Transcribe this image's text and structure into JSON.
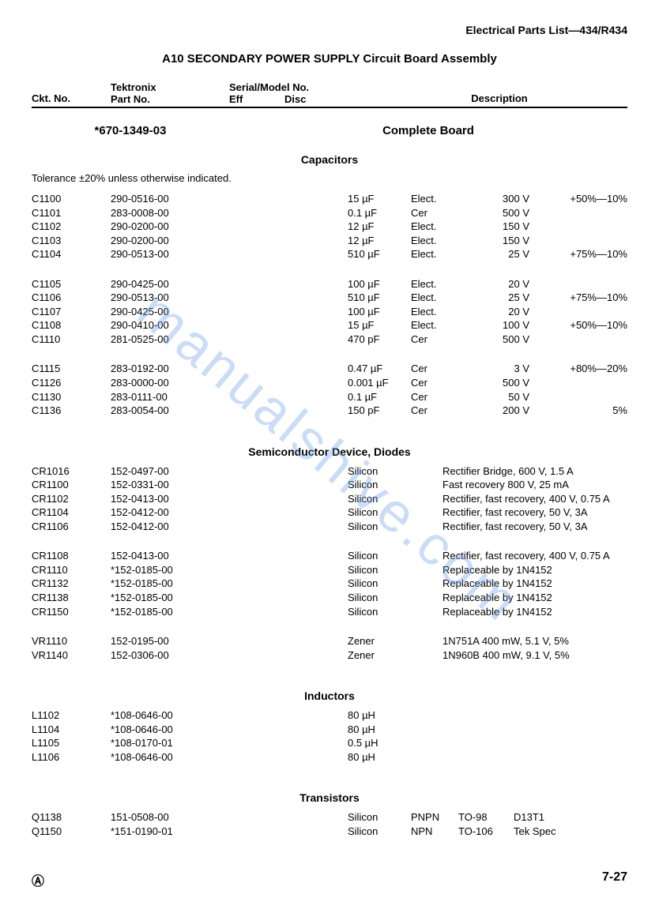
{
  "header": {
    "top_right": "Electrical Parts List—434/R434",
    "title": "A10   SECONDARY POWER SUPPLY Circuit Board Assembly",
    "col_ckt": "Ckt. No.",
    "col_part_top": "Tektronix",
    "col_part_bot": "Part No.",
    "col_serial_top": "Serial/Model No.",
    "col_eff": "Eff",
    "col_disc": "Disc",
    "col_desc": "Description"
  },
  "board": {
    "part": "*670-1349-03",
    "desc": "Complete Board"
  },
  "sections": {
    "cap": {
      "title": "Capacitors",
      "tol": "Tolerance ±20% unless otherwise indicated."
    },
    "sem": {
      "title": "Semiconductor Device, Diodes"
    },
    "ind": {
      "title": "Inductors"
    },
    "tra": {
      "title": "Transistors"
    }
  },
  "caps": [
    [
      {
        "ckt": "C1100",
        "part": "290-0516-00",
        "v1": "15 µF",
        "v2": "Elect.",
        "v3": "300 V",
        "v4": "+50%—10%"
      },
      {
        "ckt": "C1101",
        "part": "283-0008-00",
        "v1": "0.1 µF",
        "v2": "Cer",
        "v3": "500 V",
        "v4": ""
      },
      {
        "ckt": "C1102",
        "part": "290-0200-00",
        "v1": "12 µF",
        "v2": "Elect.",
        "v3": "150 V",
        "v4": ""
      },
      {
        "ckt": "C1103",
        "part": "290-0200-00",
        "v1": "12 µF",
        "v2": "Elect.",
        "v3": "150 V",
        "v4": ""
      },
      {
        "ckt": "C1104",
        "part": "290-0513-00",
        "v1": "510 µF",
        "v2": "Elect.",
        "v3": "25 V",
        "v4": "+75%—10%"
      }
    ],
    [
      {
        "ckt": "C1105",
        "part": "290-0425-00",
        "v1": "100 µF",
        "v2": "Elect.",
        "v3": "20 V",
        "v4": ""
      },
      {
        "ckt": "C1106",
        "part": "290-0513-00",
        "v1": "510 µF",
        "v2": "Elect.",
        "v3": "25 V",
        "v4": "+75%—10%"
      },
      {
        "ckt": "C1107",
        "part": "290-0425-00",
        "v1": "100 µF",
        "v2": "Elect.",
        "v3": "20 V",
        "v4": ""
      },
      {
        "ckt": "C1108",
        "part": "290-0410-00",
        "v1": "15 µF",
        "v2": "Elect.",
        "v3": "100 V",
        "v4": "+50%—10%"
      },
      {
        "ckt": "C1110",
        "part": "281-0525-00",
        "v1": "470 pF",
        "v2": "Cer",
        "v3": "500 V",
        "v4": ""
      }
    ],
    [
      {
        "ckt": "C1115",
        "part": "283-0192-00",
        "v1": "0.47 µF",
        "v2": "Cer",
        "v3": "3 V",
        "v4": "+80%—20%"
      },
      {
        "ckt": "C1126",
        "part": "283-0000-00",
        "v1": "0.001 µF",
        "v2": "Cer",
        "v3": "500 V",
        "v4": ""
      },
      {
        "ckt": "C1130",
        "part": "283-0111-00",
        "v1": "0.1 µF",
        "v2": "Cer",
        "v3": "50 V",
        "v4": ""
      },
      {
        "ckt": "C1136",
        "part": "283-0054-00",
        "v1": "150 pF",
        "v2": "Cer",
        "v3": "200 V",
        "v4": "5%"
      }
    ]
  ],
  "sems": [
    [
      {
        "ckt": "CR1016",
        "part": "152-0497-00",
        "v1": "Silicon",
        "desc": "Rectifier Bridge, 600 V, 1.5 A"
      },
      {
        "ckt": "CR1100",
        "part": "152-0331-00",
        "v1": "Silicon",
        "desc": "Fast recovery   800 V, 25 mA"
      },
      {
        "ckt": "CR1102",
        "part": "152-0413-00",
        "v1": "Silicon",
        "desc": "Rectifier, fast recovery, 400 V, 0.75 A"
      },
      {
        "ckt": "CR1104",
        "part": "152-0412-00",
        "v1": "Silicon",
        "desc": "Rectifier, fast recovery, 50 V, 3A"
      },
      {
        "ckt": "CR1106",
        "part": "152-0412-00",
        "v1": "Silicon",
        "desc": "Rectifier, fast recovery, 50 V, 3A"
      }
    ],
    [
      {
        "ckt": "CR1108",
        "part": "152-0413-00",
        "v1": "Silicon",
        "desc": "Rectifier, fast recovery, 400 V, 0.75 A"
      },
      {
        "ckt": "CR1110",
        "part": "*152-0185-00",
        "v1": "Silicon",
        "desc": "Replaceable by 1N4152"
      },
      {
        "ckt": "CR1132",
        "part": "*152-0185-00",
        "v1": "Silicon",
        "desc": "Replaceable by 1N4152"
      },
      {
        "ckt": "CR1138",
        "part": "*152-0185-00",
        "v1": "Silicon",
        "desc": "Replaceable by 1N4152"
      },
      {
        "ckt": "CR1150",
        "part": "*152-0185-00",
        "v1": "Silicon",
        "desc": "Replaceable by 1N4152"
      }
    ],
    [
      {
        "ckt": "VR1110",
        "part": "152-0195-00",
        "v1": "Zener",
        "desc": "1N751A   400 mW, 5.1 V, 5%"
      },
      {
        "ckt": "VR1140",
        "part": "152-0306-00",
        "v1": "Zener",
        "desc": "1N960B   400 mW, 9.1 V, 5%"
      }
    ]
  ],
  "inds": [
    {
      "ckt": "L1102",
      "part": "*108-0646-00",
      "v1": "80 µH"
    },
    {
      "ckt": "L1104",
      "part": "*108-0646-00",
      "v1": "80 µH"
    },
    {
      "ckt": "L1105",
      "part": "*108-0170-01",
      "v1": "0.5 µH"
    },
    {
      "ckt": "L1106",
      "part": "*108-0646-00",
      "v1": "80 µH"
    }
  ],
  "tras": [
    {
      "ckt": "Q1138",
      "part": "151-0508-00",
      "v1": "Silicon",
      "v2": "PNPN",
      "v3": "TO-98",
      "v4": "D13T1"
    },
    {
      "ckt": "Q1150",
      "part": "*151-0190-01",
      "v1": "Silicon",
      "v2": "NPN",
      "v3": "TO-106",
      "v4": "Tek Spec"
    }
  ],
  "footer": {
    "left": "Ⓐ",
    "right": "7-27"
  },
  "watermark": "manualshive.com"
}
